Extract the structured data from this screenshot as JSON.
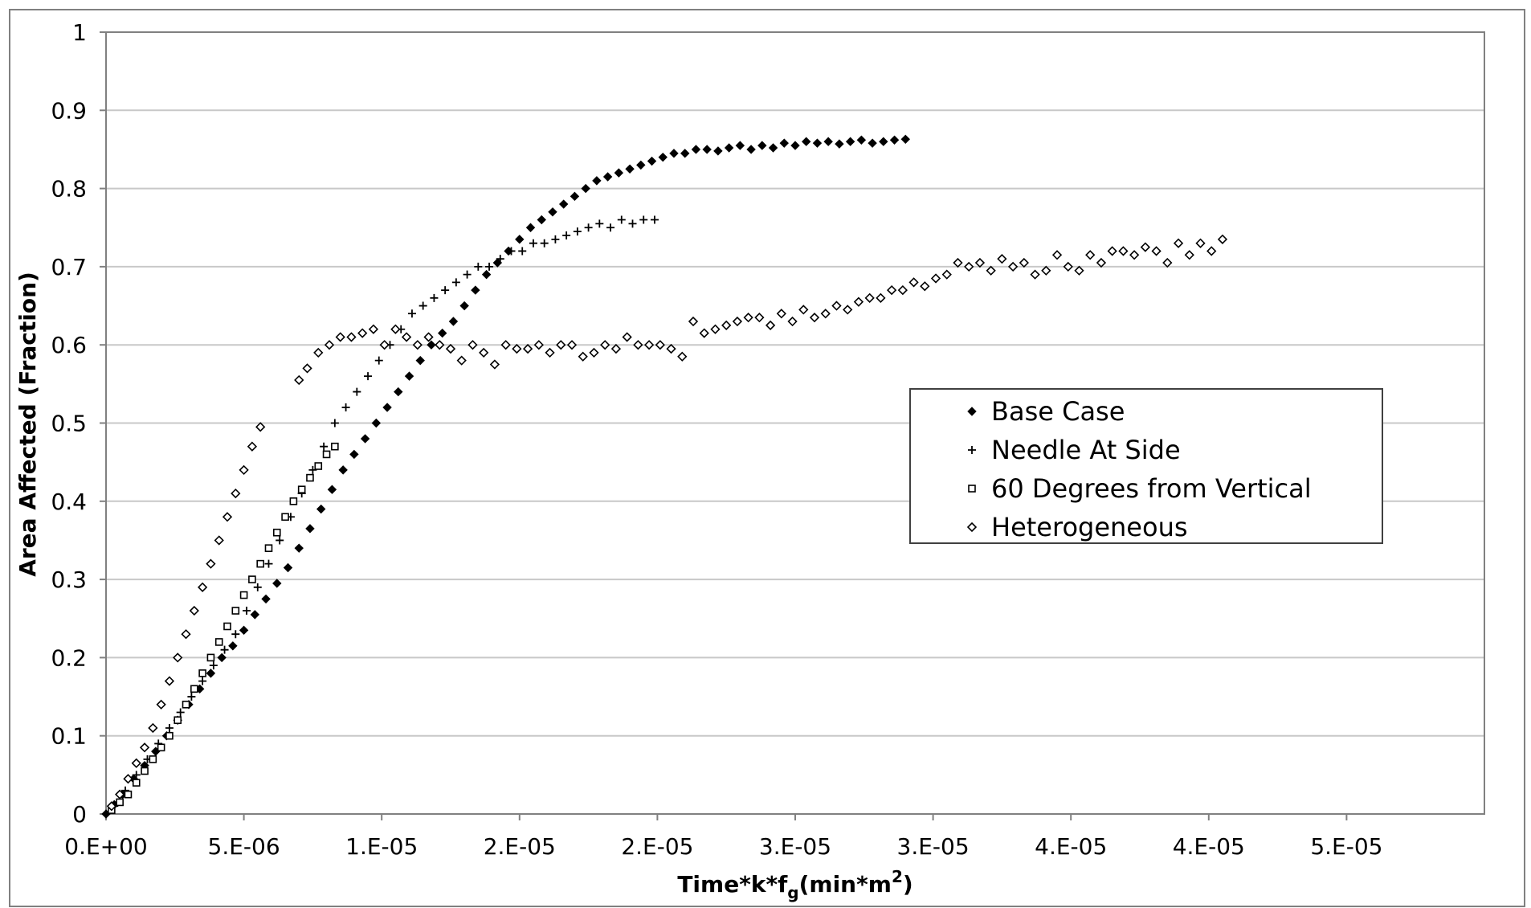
{
  "chart_data": {
    "type": "scatter",
    "title": "",
    "xlabel": "Time*k*f",
    "xlabel_sub": "g",
    "xlabel_unit_prefix": "(min*m",
    "xlabel_unit_sup": "2",
    "xlabel_unit_suffix": ")",
    "ylabel": "Area Affected (Fraction)",
    "xlim": [
      0,
      5e-05
    ],
    "ylim": [
      0,
      1
    ],
    "x_ticks": [
      0,
      5e-06,
      1e-05,
      1.5e-05,
      2e-05,
      2.5e-05,
      3e-05,
      3.5e-05,
      4e-05,
      4.5e-05
    ],
    "x_tick_labels": [
      "0.E+00",
      "5.E-06",
      "1.E-05",
      "2.E-05",
      "2.E-05",
      "3.E-05",
      "3.E-05",
      "4.E-05",
      "4.E-05",
      "5.E-05"
    ],
    "y_ticks": [
      0,
      0.1,
      0.2,
      0.3,
      0.4,
      0.5,
      0.6,
      0.7,
      0.8,
      0.9,
      1
    ],
    "y_tick_labels": [
      "0",
      "0.1",
      "0.2",
      "0.3",
      "0.4",
      "0.5",
      "0.6",
      "0.7",
      "0.8",
      "0.9",
      "1"
    ],
    "grid": "horizontal",
    "legend_position": "right-middle",
    "series": [
      {
        "name": "Base Case",
        "marker": "diamond-filled",
        "color": "#000000",
        "points": [
          [
            0.0,
            0.0
          ],
          [
            3e-07,
            0.012
          ],
          [
            6e-07,
            0.025
          ],
          [
            1e-06,
            0.045
          ],
          [
            1.4e-06,
            0.062
          ],
          [
            1.8e-06,
            0.08
          ],
          [
            2.2e-06,
            0.1
          ],
          [
            2.6e-06,
            0.12
          ],
          [
            3e-06,
            0.14
          ],
          [
            3.4e-06,
            0.16
          ],
          [
            3.8e-06,
            0.18
          ],
          [
            4.2e-06,
            0.2
          ],
          [
            4.6e-06,
            0.215
          ],
          [
            5e-06,
            0.235
          ],
          [
            5.4e-06,
            0.255
          ],
          [
            5.8e-06,
            0.275
          ],
          [
            6.2e-06,
            0.295
          ],
          [
            6.6e-06,
            0.315
          ],
          [
            7e-06,
            0.34
          ],
          [
            7.4e-06,
            0.365
          ],
          [
            7.8e-06,
            0.39
          ],
          [
            8.2e-06,
            0.415
          ],
          [
            8.6e-06,
            0.44
          ],
          [
            9e-06,
            0.46
          ],
          [
            9.4e-06,
            0.48
          ],
          [
            9.8e-06,
            0.5
          ],
          [
            1.02e-05,
            0.52
          ],
          [
            1.06e-05,
            0.54
          ],
          [
            1.1e-05,
            0.56
          ],
          [
            1.14e-05,
            0.58
          ],
          [
            1.18e-05,
            0.6
          ],
          [
            1.22e-05,
            0.615
          ],
          [
            1.26e-05,
            0.63
          ],
          [
            1.3e-05,
            0.65
          ],
          [
            1.34e-05,
            0.67
          ],
          [
            1.38e-05,
            0.69
          ],
          [
            1.42e-05,
            0.705
          ],
          [
            1.46e-05,
            0.72
          ],
          [
            1.5e-05,
            0.735
          ],
          [
            1.54e-05,
            0.75
          ],
          [
            1.58e-05,
            0.76
          ],
          [
            1.62e-05,
            0.77
          ],
          [
            1.66e-05,
            0.78
          ],
          [
            1.7e-05,
            0.79
          ],
          [
            1.74e-05,
            0.8
          ],
          [
            1.78e-05,
            0.81
          ],
          [
            1.82e-05,
            0.815
          ],
          [
            1.86e-05,
            0.82
          ],
          [
            1.9e-05,
            0.825
          ],
          [
            1.94e-05,
            0.83
          ],
          [
            1.98e-05,
            0.835
          ],
          [
            2.02e-05,
            0.84
          ],
          [
            2.06e-05,
            0.845
          ],
          [
            2.1e-05,
            0.845
          ],
          [
            2.14e-05,
            0.85
          ],
          [
            2.18e-05,
            0.85
          ],
          [
            2.22e-05,
            0.848
          ],
          [
            2.26e-05,
            0.852
          ],
          [
            2.3e-05,
            0.855
          ],
          [
            2.34e-05,
            0.85
          ],
          [
            2.38e-05,
            0.855
          ],
          [
            2.42e-05,
            0.852
          ],
          [
            2.46e-05,
            0.858
          ],
          [
            2.5e-05,
            0.855
          ],
          [
            2.54e-05,
            0.86
          ],
          [
            2.58e-05,
            0.858
          ],
          [
            2.62e-05,
            0.86
          ],
          [
            2.66e-05,
            0.857
          ],
          [
            2.7e-05,
            0.86
          ],
          [
            2.74e-05,
            0.862
          ],
          [
            2.78e-05,
            0.858
          ],
          [
            2.82e-05,
            0.86
          ],
          [
            2.86e-05,
            0.862
          ],
          [
            2.9e-05,
            0.863
          ]
        ]
      },
      {
        "name": "Needle At Side",
        "marker": "plus",
        "color": "#000000",
        "points": [
          [
            3e-07,
            0.01
          ],
          [
            7e-07,
            0.03
          ],
          [
            1.1e-06,
            0.05
          ],
          [
            1.5e-06,
            0.07
          ],
          [
            1.9e-06,
            0.09
          ],
          [
            2.3e-06,
            0.11
          ],
          [
            2.7e-06,
            0.13
          ],
          [
            3.1e-06,
            0.15
          ],
          [
            3.5e-06,
            0.17
          ],
          [
            3.9e-06,
            0.19
          ],
          [
            4.3e-06,
            0.21
          ],
          [
            4.7e-06,
            0.23
          ],
          [
            5.1e-06,
            0.26
          ],
          [
            5.5e-06,
            0.29
          ],
          [
            5.9e-06,
            0.32
          ],
          [
            6.3e-06,
            0.35
          ],
          [
            6.7e-06,
            0.38
          ],
          [
            7.1e-06,
            0.41
          ],
          [
            7.5e-06,
            0.44
          ],
          [
            7.9e-06,
            0.47
          ],
          [
            8.3e-06,
            0.5
          ],
          [
            8.7e-06,
            0.52
          ],
          [
            9.1e-06,
            0.54
          ],
          [
            9.5e-06,
            0.56
          ],
          [
            9.9e-06,
            0.58
          ],
          [
            1.03e-05,
            0.6
          ],
          [
            1.07e-05,
            0.62
          ],
          [
            1.11e-05,
            0.64
          ],
          [
            1.15e-05,
            0.65
          ],
          [
            1.19e-05,
            0.66
          ],
          [
            1.23e-05,
            0.67
          ],
          [
            1.27e-05,
            0.68
          ],
          [
            1.31e-05,
            0.69
          ],
          [
            1.35e-05,
            0.7
          ],
          [
            1.39e-05,
            0.7
          ],
          [
            1.43e-05,
            0.71
          ],
          [
            1.47e-05,
            0.72
          ],
          [
            1.51e-05,
            0.72
          ],
          [
            1.55e-05,
            0.73
          ],
          [
            1.59e-05,
            0.73
          ],
          [
            1.63e-05,
            0.735
          ],
          [
            1.67e-05,
            0.74
          ],
          [
            1.71e-05,
            0.745
          ],
          [
            1.75e-05,
            0.75
          ],
          [
            1.79e-05,
            0.755
          ],
          [
            1.83e-05,
            0.75
          ],
          [
            1.87e-05,
            0.76
          ],
          [
            1.91e-05,
            0.755
          ],
          [
            1.95e-05,
            0.76
          ],
          [
            1.99e-05,
            0.76
          ]
        ]
      },
      {
        "name": "60 Degrees from Vertical",
        "marker": "square-open",
        "color": "#000000",
        "points": [
          [
            2e-07,
            0.005
          ],
          [
            5e-07,
            0.015
          ],
          [
            8e-07,
            0.025
          ],
          [
            1.1e-06,
            0.04
          ],
          [
            1.4e-06,
            0.055
          ],
          [
            1.7e-06,
            0.07
          ],
          [
            2e-06,
            0.085
          ],
          [
            2.3e-06,
            0.1
          ],
          [
            2.6e-06,
            0.12
          ],
          [
            2.9e-06,
            0.14
          ],
          [
            3.2e-06,
            0.16
          ],
          [
            3.5e-06,
            0.18
          ],
          [
            3.8e-06,
            0.2
          ],
          [
            4.1e-06,
            0.22
          ],
          [
            4.4e-06,
            0.24
          ],
          [
            4.7e-06,
            0.26
          ],
          [
            5e-06,
            0.28
          ],
          [
            5.3e-06,
            0.3
          ],
          [
            5.6e-06,
            0.32
          ],
          [
            5.9e-06,
            0.34
          ],
          [
            6.2e-06,
            0.36
          ],
          [
            6.5e-06,
            0.38
          ],
          [
            6.8e-06,
            0.4
          ],
          [
            7.1e-06,
            0.415
          ],
          [
            7.4e-06,
            0.43
          ],
          [
            7.7e-06,
            0.445
          ],
          [
            8e-06,
            0.46
          ],
          [
            8.3e-06,
            0.47
          ]
        ]
      },
      {
        "name": "Heterogeneous",
        "marker": "diamond-open",
        "color": "#000000",
        "points": [
          [
            2e-07,
            0.01
          ],
          [
            5e-07,
            0.025
          ],
          [
            8e-07,
            0.045
          ],
          [
            1.1e-06,
            0.065
          ],
          [
            1.4e-06,
            0.085
          ],
          [
            1.7e-06,
            0.11
          ],
          [
            2e-06,
            0.14
          ],
          [
            2.3e-06,
            0.17
          ],
          [
            2.6e-06,
            0.2
          ],
          [
            2.9e-06,
            0.23
          ],
          [
            3.2e-06,
            0.26
          ],
          [
            3.5e-06,
            0.29
          ],
          [
            3.8e-06,
            0.32
          ],
          [
            4.1e-06,
            0.35
          ],
          [
            4.4e-06,
            0.38
          ],
          [
            4.7e-06,
            0.41
          ],
          [
            5e-06,
            0.44
          ],
          [
            5.3e-06,
            0.47
          ],
          [
            5.6e-06,
            0.495
          ],
          [
            7e-06,
            0.555
          ],
          [
            7.3e-06,
            0.57
          ],
          [
            7.7e-06,
            0.59
          ],
          [
            8.1e-06,
            0.6
          ],
          [
            8.5e-06,
            0.61
          ],
          [
            8.9e-06,
            0.61
          ],
          [
            9.3e-06,
            0.615
          ],
          [
            9.7e-06,
            0.62
          ],
          [
            1.01e-05,
            0.6
          ],
          [
            1.05e-05,
            0.62
          ],
          [
            1.09e-05,
            0.61
          ],
          [
            1.13e-05,
            0.6
          ],
          [
            1.17e-05,
            0.61
          ],
          [
            1.21e-05,
            0.6
          ],
          [
            1.25e-05,
            0.595
          ],
          [
            1.29e-05,
            0.58
          ],
          [
            1.33e-05,
            0.6
          ],
          [
            1.37e-05,
            0.59
          ],
          [
            1.41e-05,
            0.575
          ],
          [
            1.45e-05,
            0.6
          ],
          [
            1.49e-05,
            0.595
          ],
          [
            1.53e-05,
            0.595
          ],
          [
            1.57e-05,
            0.6
          ],
          [
            1.61e-05,
            0.59
          ],
          [
            1.65e-05,
            0.6
          ],
          [
            1.69e-05,
            0.6
          ],
          [
            1.73e-05,
            0.585
          ],
          [
            1.77e-05,
            0.59
          ],
          [
            1.81e-05,
            0.6
          ],
          [
            1.85e-05,
            0.595
          ],
          [
            1.89e-05,
            0.61
          ],
          [
            1.93e-05,
            0.6
          ],
          [
            1.97e-05,
            0.6
          ],
          [
            2.01e-05,
            0.6
          ],
          [
            2.05e-05,
            0.595
          ],
          [
            2.09e-05,
            0.585
          ],
          [
            2.13e-05,
            0.63
          ],
          [
            2.17e-05,
            0.615
          ],
          [
            2.21e-05,
            0.62
          ],
          [
            2.25e-05,
            0.625
          ],
          [
            2.29e-05,
            0.63
          ],
          [
            2.33e-05,
            0.635
          ],
          [
            2.37e-05,
            0.635
          ],
          [
            2.41e-05,
            0.625
          ],
          [
            2.45e-05,
            0.64
          ],
          [
            2.49e-05,
            0.63
          ],
          [
            2.53e-05,
            0.645
          ],
          [
            2.57e-05,
            0.635
          ],
          [
            2.61e-05,
            0.64
          ],
          [
            2.65e-05,
            0.65
          ],
          [
            2.69e-05,
            0.645
          ],
          [
            2.73e-05,
            0.655
          ],
          [
            2.77e-05,
            0.66
          ],
          [
            2.81e-05,
            0.66
          ],
          [
            2.85e-05,
            0.67
          ],
          [
            2.89e-05,
            0.67
          ],
          [
            2.93e-05,
            0.68
          ],
          [
            2.97e-05,
            0.675
          ],
          [
            3.01e-05,
            0.685
          ],
          [
            3.05e-05,
            0.69
          ],
          [
            3.09e-05,
            0.705
          ],
          [
            3.13e-05,
            0.7
          ],
          [
            3.17e-05,
            0.705
          ],
          [
            3.21e-05,
            0.695
          ],
          [
            3.25e-05,
            0.71
          ],
          [
            3.29e-05,
            0.7
          ],
          [
            3.33e-05,
            0.705
          ],
          [
            3.37e-05,
            0.69
          ],
          [
            3.41e-05,
            0.695
          ],
          [
            3.45e-05,
            0.715
          ],
          [
            3.49e-05,
            0.7
          ],
          [
            3.53e-05,
            0.695
          ],
          [
            3.57e-05,
            0.715
          ],
          [
            3.61e-05,
            0.705
          ],
          [
            3.65e-05,
            0.72
          ],
          [
            3.69e-05,
            0.72
          ],
          [
            3.73e-05,
            0.715
          ],
          [
            3.77e-05,
            0.725
          ],
          [
            3.81e-05,
            0.72
          ],
          [
            3.85e-05,
            0.705
          ],
          [
            3.89e-05,
            0.73
          ],
          [
            3.93e-05,
            0.715
          ],
          [
            3.97e-05,
            0.73
          ],
          [
            4.01e-05,
            0.72
          ],
          [
            4.05e-05,
            0.735
          ]
        ]
      }
    ]
  }
}
